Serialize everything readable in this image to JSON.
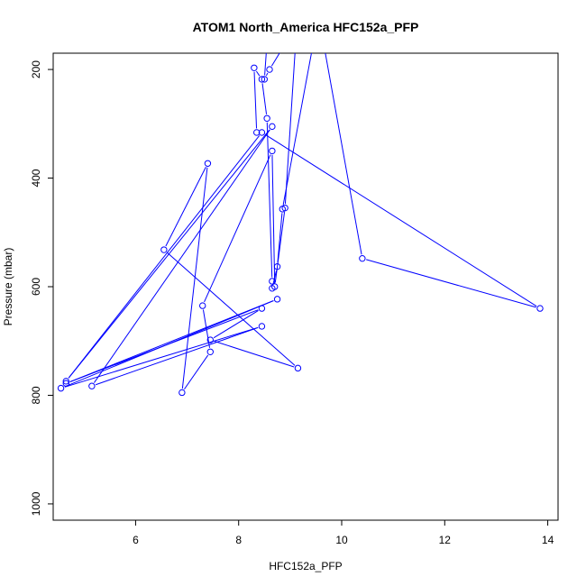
{
  "chart_data": {
    "type": "line",
    "title": "ATOM1 North_America HFC152a_PFP",
    "xlabel": "HFC152a_PFP",
    "ylabel": "Pressure (mbar)",
    "xlim": [
      4.4,
      14.2
    ],
    "ylim": [
      1030,
      170
    ],
    "y_reversed": true,
    "x_ticks": [
      6,
      8,
      10,
      12,
      14
    ],
    "y_ticks": [
      200,
      400,
      600,
      800,
      1000
    ],
    "grid": false,
    "legend": "none",
    "series_color": "#0000ff",
    "marker": "open-circle",
    "series": [
      {
        "x": [
          8.35,
          8.3,
          8.45,
          8.55,
          8.65,
          8.65,
          8.75,
          8.85,
          9.55,
          10.4,
          13.85,
          8.45,
          4.65,
          8.65,
          5.15,
          8.45,
          4.55,
          8.75,
          4.65,
          8.45,
          7.45,
          9.15,
          6.55,
          7.4,
          6.9,
          7.45,
          7.3,
          8.65,
          8.7,
          8.9,
          9.1,
          8.85,
          8.55,
          8.5,
          8.6,
          9.05
        ],
        "y": [
          316,
          197,
          218,
          290,
          590,
          603,
          563,
          457,
          100,
          548,
          640,
          316,
          774,
          305,
          783,
          673,
          787,
          623,
          778,
          640,
          698,
          750,
          532,
          373,
          795,
          720,
          635,
          350,
          600,
          455,
          160,
          70,
          150,
          218,
          200,
          130
        ]
      }
    ]
  }
}
